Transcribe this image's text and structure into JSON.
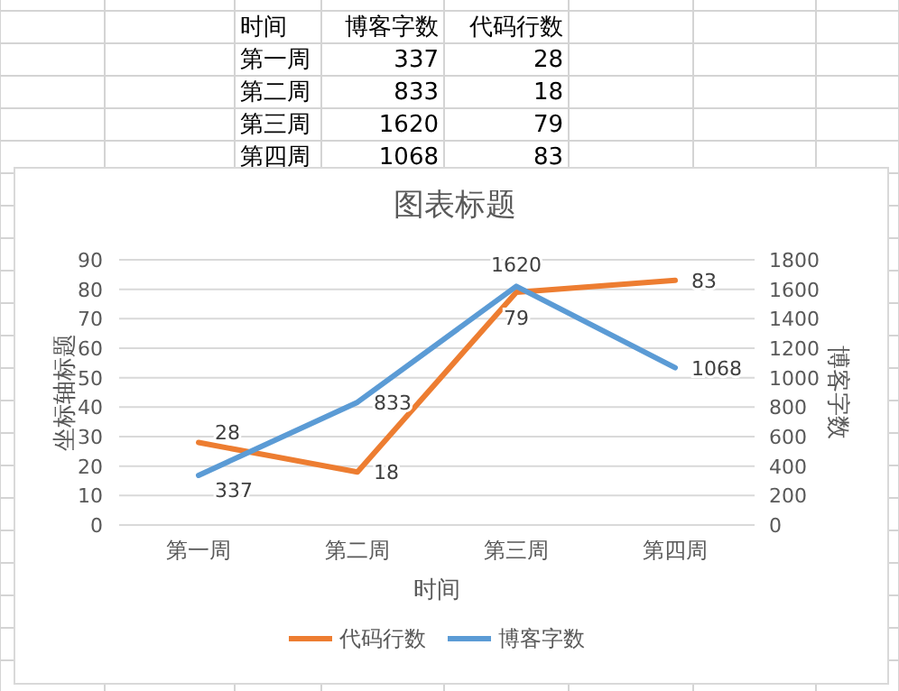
{
  "chart_data": [
    {
      "type": "other",
      "data_labels": true,
      "annotations": [
        "时间"
      ],
      "categories": [
        "第一周",
        "第二周",
        "第三周",
        "第四周"
      ],
      "series": [
        {
          "name": "博客字数",
          "values": [
            337,
            833,
            1620,
            1068
          ]
        },
        {
          "name": "代码行数",
          "values": [
            28,
            18,
            79,
            83
          ]
        }
      ]
    },
    {
      "type": "line",
      "title": "图表标题",
      "xlabel": "时间",
      "ylabel": "坐标轴标题",
      "y2label": "博客字数",
      "categories": [
        "第一周",
        "第二周",
        "第三周",
        "第四周"
      ],
      "series": [
        {
          "name": "代码行数",
          "color": "#ed7d31",
          "values": [
            28,
            18,
            79,
            83
          ]
        },
        {
          "name": "博客字数",
          "color": "#5b9bd5",
          "values": [
            337,
            833,
            1620,
            1068
          ],
          "axis": "y2"
        }
      ],
      "ylim": [
        0,
        90
      ],
      "yticks": [
        0,
        10,
        20,
        30,
        40,
        50,
        60,
        70,
        80,
        90
      ],
      "y2lim": [
        0,
        1800
      ],
      "y2ticks": [
        0,
        200,
        400,
        600,
        800,
        1000,
        1200,
        1400,
        1600,
        1800
      ],
      "grid": "y",
      "legend": "bottom",
      "data_labels": true,
      "marker": "none",
      "line_style": "solid"
    }
  ]
}
